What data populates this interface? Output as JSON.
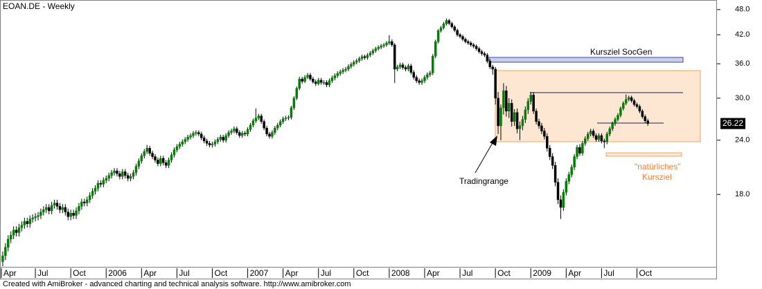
{
  "chart_data": {
    "type": "candlestick",
    "title": "EOAN.DE - Weekly",
    "footer": "Created with AmiBroker - advanced charting and technical analysis software. http://www.amibroker.com",
    "annotations": [
      "Kursziel SocGen",
      "Tradingrange",
      "\"natürliches\"",
      "Kursziel"
    ],
    "up_color": "#008000",
    "down_color": "#000000",
    "log_scale": true,
    "ylim": [
      12.3,
      50.5
    ],
    "yticks": [
      {
        "value": 18,
        "label": "18.0"
      },
      {
        "value": 24,
        "label": "24.0"
      },
      {
        "value": 30,
        "label": "30.0"
      },
      {
        "value": 36,
        "label": "36.0"
      },
      {
        "value": 42,
        "label": "42.0"
      },
      {
        "value": 48,
        "label": "48.0"
      }
    ],
    "xlim": [
      -1,
      262.4
    ],
    "xticks": [
      {
        "value": -1,
        "label": "Apr"
      },
      {
        "value": 12,
        "label": "Jul"
      },
      {
        "value": 25,
        "label": "Oct"
      },
      {
        "value": 38,
        "label": "2006"
      },
      {
        "value": 51,
        "label": "Apr"
      },
      {
        "value": 64,
        "label": "Jul"
      },
      {
        "value": 77,
        "label": "Oct"
      },
      {
        "value": 90,
        "label": "2007"
      },
      {
        "value": 103,
        "label": "Apr"
      },
      {
        "value": 116,
        "label": "Jul"
      },
      {
        "value": 129,
        "label": "Oct"
      },
      {
        "value": 142,
        "label": "2008"
      },
      {
        "value": 155,
        "label": "Apr"
      },
      {
        "value": 168,
        "label": "Jul"
      },
      {
        "value": 181,
        "label": "Oct"
      },
      {
        "value": 194,
        "label": "2009"
      },
      {
        "value": 207,
        "label": "Apr"
      },
      {
        "value": 220,
        "label": "Jul"
      },
      {
        "value": 233,
        "label": "Oct"
      }
    ],
    "open": [
      12.6,
      13.0,
      13.6,
      14.2,
      14.5,
      14.9,
      14.7,
      15.1,
      15.3,
      15.6,
      15.4,
      15.8,
      15.9,
      16.0,
      16.1,
      16.4,
      16.6,
      16.8,
      16.5,
      17.0,
      17.2,
      16.9,
      16.6,
      16.8,
      16.4,
      16.0,
      16.3,
      16.1,
      16.5,
      16.9,
      17.3,
      17.2,
      17.5,
      17.9,
      18.3,
      18.6,
      19.1,
      19.0,
      19.4,
      19.6,
      19.9,
      20.2,
      20.4,
      20.1,
      19.8,
      20.3,
      19.9,
      19.6,
      19.8,
      20.2,
      20.9,
      21.5,
      22.1,
      22.6,
      23.0,
      22.4,
      22.0,
      21.6,
      21.2,
      21.8,
      21.3,
      21.0,
      21.6,
      22.2,
      22.8,
      23.2,
      23.5,
      23.8,
      24.1,
      24.4,
      24.6,
      24.9,
      25.0,
      24.8,
      24.3,
      23.9,
      23.6,
      23.4,
      23.5,
      23.8,
      24.1,
      24.4,
      24.0,
      24.6,
      25.0,
      25.2,
      25.5,
      25.0,
      24.6,
      24.9,
      24.8,
      25.4,
      26.0,
      26.6,
      27.0,
      27.3,
      26.5,
      25.6,
      24.8,
      24.5,
      25.0,
      25.6,
      26.0,
      26.5,
      26.9,
      27.0,
      27.1,
      28.5,
      30.0,
      31.6,
      33.2,
      32.8,
      33.5,
      33.9,
      33.2,
      32.7,
      32.4,
      33.0,
      32.6,
      32.6,
      32.2,
      32.9,
      33.4,
      33.8,
      34.2,
      34.5,
      34.8,
      35.0,
      35.5,
      35.9,
      36.3,
      36.6,
      37.0,
      37.4,
      37.2,
      37.7,
      38.1,
      38.6,
      39.0,
      39.3,
      39.6,
      39.8,
      40.2,
      40.5,
      39.8,
      35.0,
      35.4,
      35.8,
      35.3,
      35.0,
      35.6,
      34.4,
      33.5,
      32.9,
      32.6,
      32.9,
      33.5,
      34.0,
      34.3,
      37.5,
      40.5,
      42.9,
      43.6,
      44.5,
      45.3,
      44.6,
      43.8,
      43.0,
      42.0,
      41.6,
      41.0,
      40.5,
      40.2,
      39.8,
      39.5,
      39.0,
      38.4,
      38.0,
      37.7,
      36.5,
      35.4,
      35.0,
      30.0,
      25.9,
      28.5,
      31.2,
      28.0,
      29.2,
      26.5,
      27.8,
      25.5,
      25.9,
      26.8,
      28.2,
      29.5,
      30.5,
      28.0,
      26.5,
      25.9,
      25.2,
      24.5,
      23.0,
      22.0,
      21.0,
      19.2,
      17.5,
      16.8,
      18.2,
      19.3,
      20.0,
      20.8,
      22.0,
      23.1,
      22.4,
      23.6,
      24.2,
      24.8,
      25.2,
      24.6,
      24.1,
      24.6,
      23.9,
      23.8,
      24.8,
      25.5,
      26.2,
      26.8,
      27.4,
      28.4,
      29.2,
      29.8,
      30.1,
      29.6,
      29.0,
      28.7,
      28.0,
      27.2,
      26.6
    ],
    "high": [
      13.3,
      13.9,
      14.5,
      14.8,
      15.2,
      15.2,
      15.4,
      15.6,
      15.9,
      15.9,
      16.1,
      16.2,
      16.3,
      16.4,
      16.7,
      16.9,
      17.1,
      17.1,
      17.3,
      17.5,
      17.5,
      17.2,
      17.1,
      17.1,
      16.7,
      16.6,
      16.6,
      16.8,
      17.2,
      17.6,
      17.6,
      17.8,
      18.2,
      18.6,
      18.9,
      19.4,
      19.4,
      19.7,
      19.9,
      20.2,
      20.5,
      20.7,
      20.7,
      20.4,
      20.6,
      20.6,
      20.2,
      20.1,
      20.5,
      21.2,
      21.8,
      22.4,
      22.9,
      23.4,
      23.3,
      22.7,
      22.3,
      21.9,
      22.1,
      22.1,
      21.6,
      21.9,
      22.5,
      23.1,
      23.5,
      23.8,
      24.1,
      24.4,
      24.7,
      24.9,
      25.2,
      25.3,
      25.3,
      25.1,
      24.6,
      24.2,
      23.9,
      23.8,
      24.1,
      24.4,
      24.7,
      24.7,
      24.9,
      25.3,
      25.5,
      25.8,
      25.8,
      25.3,
      25.2,
      25.2,
      25.7,
      26.3,
      26.9,
      28.4,
      27.6,
      27.6,
      26.8,
      25.9,
      25.1,
      25.3,
      25.9,
      26.3,
      26.8,
      27.2,
      27.3,
      27.4,
      28.8,
      30.3,
      31.9,
      33.6,
      33.6,
      33.9,
      34.3,
      34.3,
      33.6,
      33.1,
      33.4,
      33.4,
      33.0,
      33.0,
      33.3,
      33.8,
      34.2,
      34.6,
      34.9,
      35.2,
      35.4,
      35.9,
      36.3,
      36.7,
      37.0,
      37.4,
      37.8,
      37.8,
      38.1,
      38.5,
      39.0,
      39.4,
      39.7,
      40.0,
      40.2,
      40.6,
      41.9,
      41.0,
      40.2,
      35.8,
      36.2,
      36.2,
      35.7,
      36.0,
      36.0,
      34.8,
      33.9,
      33.3,
      33.3,
      33.9,
      34.4,
      34.7,
      37.9,
      40.9,
      43.3,
      44.0,
      44.9,
      45.8,
      45.7,
      45.0,
      44.2,
      43.4,
      42.4,
      42.0,
      41.4,
      40.9,
      40.6,
      40.2,
      39.9,
      39.4,
      38.8,
      38.4,
      38.1,
      36.9,
      35.8,
      35.4,
      31.0,
      29.0,
      32.5,
      32.0,
      30.0,
      29.8,
      28.3,
      28.4,
      26.5,
      27.3,
      28.7,
      30.0,
      31.0,
      31.0,
      28.4,
      26.9,
      26.3,
      25.6,
      24.9,
      23.4,
      22.4,
      21.4,
      19.6,
      17.9,
      18.5,
      19.6,
      20.3,
      21.1,
      22.3,
      23.4,
      23.5,
      23.9,
      24.5,
      25.1,
      25.5,
      25.5,
      24.9,
      24.9,
      24.9,
      24.2,
      25.1,
      25.8,
      26.5,
      27.1,
      27.7,
      28.7,
      29.5,
      30.6,
      30.4,
      30.4,
      29.9,
      29.3,
      29.0,
      28.3,
      27.5,
      26.9
    ],
    "low": [
      12.3,
      12.7,
      13.3,
      13.9,
      14.2,
      14.4,
      14.4,
      14.8,
      15.0,
      15.1,
      15.1,
      15.5,
      15.6,
      15.7,
      15.8,
      16.1,
      16.3,
      16.2,
      16.2,
      16.7,
      16.6,
      16.3,
      16.3,
      16.1,
      15.7,
      15.7,
      15.8,
      15.8,
      16.2,
      16.6,
      16.9,
      16.9,
      17.2,
      17.6,
      18.0,
      18.3,
      18.7,
      18.7,
      19.1,
      19.3,
      19.6,
      19.9,
      19.8,
      19.5,
      19.5,
      19.6,
      19.3,
      19.3,
      19.5,
      19.9,
      20.6,
      21.2,
      21.8,
      22.3,
      22.1,
      21.7,
      21.3,
      20.9,
      20.9,
      21.0,
      20.7,
      20.7,
      21.3,
      21.9,
      22.5,
      22.9,
      23.2,
      23.5,
      23.8,
      24.1,
      24.3,
      24.6,
      24.5,
      24.0,
      23.6,
      23.3,
      23.1,
      23.1,
      23.2,
      23.5,
      23.8,
      23.7,
      23.7,
      24.3,
      24.7,
      24.9,
      24.7,
      24.3,
      24.3,
      24.5,
      24.5,
      25.1,
      25.7,
      26.3,
      26.7,
      26.2,
      25.3,
      24.5,
      24.2,
      24.2,
      24.7,
      25.3,
      25.7,
      26.2,
      26.6,
      26.7,
      26.8,
      28.2,
      29.7,
      31.3,
      32.4,
      32.5,
      33.2,
      32.9,
      32.4,
      32.0,
      32.1,
      32.2,
      32.2,
      31.8,
      31.8,
      32.5,
      33.0,
      33.4,
      33.8,
      34.1,
      34.4,
      34.6,
      35.1,
      35.5,
      35.9,
      36.2,
      36.6,
      36.8,
      36.8,
      37.3,
      37.7,
      38.2,
      38.6,
      38.9,
      39.2,
      39.4,
      39.8,
      39.4,
      32.5,
      34.6,
      35.0,
      34.9,
      34.6,
      34.6,
      34.0,
      33.1,
      32.5,
      32.2,
      32.2,
      32.5,
      33.1,
      33.6,
      33.9,
      37.1,
      40.1,
      42.5,
      43.2,
      44.1,
      44.2,
      43.4,
      42.6,
      41.6,
      41.2,
      40.6,
      40.1,
      39.8,
      39.4,
      39.1,
      38.6,
      38.0,
      37.6,
      37.3,
      36.1,
      35.0,
      34.0,
      29.0,
      24.8,
      24.0,
      27.5,
      27.2,
      27.0,
      25.8,
      25.9,
      24.9,
      24.0,
      25.3,
      26.3,
      27.6,
      29.0,
      27.6,
      26.1,
      25.5,
      24.8,
      24.1,
      22.6,
      21.6,
      20.6,
      18.8,
      17.1,
      15.8,
      16.5,
      17.9,
      19.0,
      19.7,
      20.5,
      21.7,
      22.1,
      22.1,
      23.3,
      23.9,
      24.5,
      24.3,
      23.8,
      23.8,
      23.6,
      23.0,
      23.5,
      24.5,
      25.2,
      25.9,
      26.5,
      27.1,
      28.1,
      28.9,
      29.5,
      29.3,
      28.7,
      28.4,
      27.7,
      26.9,
      26.3,
      25.9
    ],
    "close": [
      13.0,
      13.6,
      14.2,
      14.5,
      14.9,
      14.7,
      15.1,
      15.3,
      15.6,
      15.4,
      15.8,
      15.9,
      16.0,
      16.1,
      16.4,
      16.6,
      16.8,
      16.5,
      17.0,
      17.2,
      16.9,
      16.6,
      16.8,
      16.4,
      16.0,
      16.3,
      16.1,
      16.5,
      16.9,
      17.3,
      17.2,
      17.5,
      17.9,
      18.3,
      18.6,
      19.1,
      19.0,
      19.4,
      19.6,
      19.9,
      20.2,
      20.4,
      20.1,
      19.8,
      20.3,
      19.9,
      19.6,
      19.8,
      20.2,
      20.9,
      21.5,
      22.1,
      22.6,
      23.0,
      22.4,
      22.0,
      21.6,
      21.2,
      21.8,
      21.3,
      21.0,
      21.6,
      22.2,
      22.8,
      23.2,
      23.5,
      23.8,
      24.1,
      24.4,
      24.6,
      24.9,
      25.0,
      24.8,
      24.3,
      23.9,
      23.6,
      23.4,
      23.5,
      23.8,
      24.1,
      24.4,
      24.0,
      24.6,
      25.0,
      25.2,
      25.5,
      25.0,
      24.6,
      24.9,
      24.8,
      25.4,
      26.0,
      26.6,
      27.0,
      27.3,
      26.5,
      25.6,
      24.8,
      24.5,
      25.0,
      25.6,
      26.0,
      26.5,
      26.9,
      27.0,
      27.1,
      28.5,
      30.0,
      31.6,
      33.2,
      32.8,
      33.5,
      33.9,
      33.2,
      32.7,
      32.4,
      33.0,
      32.6,
      32.6,
      32.2,
      32.9,
      33.4,
      33.8,
      34.2,
      34.5,
      34.8,
      35.0,
      35.5,
      35.9,
      36.3,
      36.6,
      37.0,
      37.4,
      37.2,
      37.7,
      38.1,
      38.6,
      39.0,
      39.3,
      39.6,
      39.8,
      40.2,
      40.5,
      39.8,
      35.0,
      35.4,
      35.8,
      35.3,
      35.0,
      35.6,
      34.4,
      33.5,
      32.9,
      32.6,
      32.9,
      33.5,
      34.0,
      34.3,
      37.5,
      40.5,
      42.9,
      43.6,
      44.5,
      45.3,
      44.6,
      43.8,
      43.0,
      42.0,
      41.6,
      41.0,
      40.5,
      40.2,
      39.8,
      39.5,
      39.0,
      38.4,
      38.0,
      37.7,
      36.5,
      35.4,
      35.0,
      30.0,
      25.9,
      28.5,
      31.2,
      28.0,
      29.2,
      26.5,
      27.8,
      25.5,
      25.9,
      26.8,
      28.2,
      29.5,
      30.5,
      28.0,
      26.5,
      25.9,
      25.2,
      24.5,
      23.0,
      22.0,
      21.0,
      19.2,
      17.5,
      16.8,
      18.2,
      19.3,
      20.0,
      20.8,
      22.0,
      23.1,
      22.4,
      23.6,
      24.2,
      24.8,
      25.2,
      24.6,
      24.1,
      24.6,
      23.9,
      23.8,
      24.8,
      25.5,
      26.2,
      26.8,
      27.4,
      28.4,
      29.2,
      29.8,
      30.1,
      29.6,
      29.0,
      28.7,
      28.0,
      27.2,
      26.6,
      26.22
    ]
  }
}
